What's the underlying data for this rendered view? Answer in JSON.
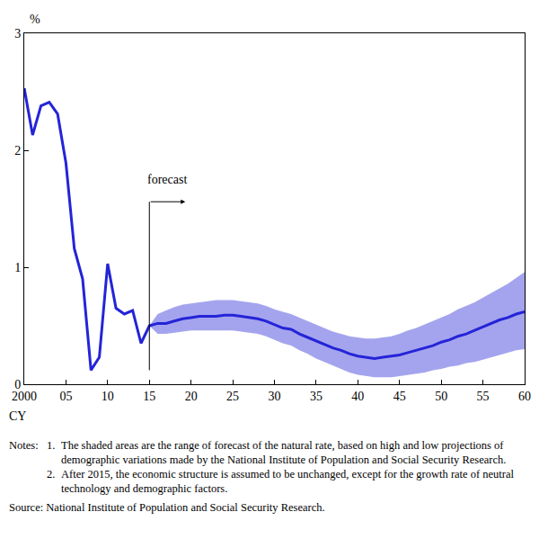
{
  "chart_data": {
    "type": "line",
    "x": [
      2000,
      2001,
      2002,
      2003,
      2004,
      2005,
      2006,
      2007,
      2008,
      2009,
      2010,
      2011,
      2012,
      2013,
      2014,
      2015,
      2016,
      2017,
      2018,
      2019,
      2020,
      2021,
      2022,
      2023,
      2024,
      2025,
      2026,
      2027,
      2028,
      2029,
      2030,
      2031,
      2032,
      2033,
      2034,
      2035,
      2036,
      2037,
      2038,
      2039,
      2040,
      2041,
      2042,
      2043,
      2044,
      2045,
      2046,
      2047,
      2048,
      2049,
      2050,
      2051,
      2052,
      2053,
      2054,
      2055,
      2056,
      2057,
      2058,
      2059,
      2060
    ],
    "values": [
      2.53,
      2.13,
      2.38,
      2.41,
      2.31,
      1.89,
      1.16,
      0.9,
      0.12,
      0.23,
      1.03,
      0.65,
      0.6,
      0.63,
      0.35,
      0.5,
      0.52,
      0.52,
      0.54,
      0.56,
      0.57,
      0.58,
      0.58,
      0.58,
      0.59,
      0.59,
      0.58,
      0.57,
      0.56,
      0.54,
      0.51,
      0.48,
      0.47,
      0.43,
      0.4,
      0.37,
      0.34,
      0.31,
      0.29,
      0.26,
      0.24,
      0.23,
      0.22,
      0.23,
      0.24,
      0.25,
      0.27,
      0.29,
      0.31,
      0.33,
      0.36,
      0.38,
      0.41,
      0.43,
      0.46,
      0.49,
      0.52,
      0.55,
      0.57,
      0.6,
      0.62
    ],
    "color": "#2424d8",
    "range": {
      "color": "#a4a4ee",
      "upper": [
        null,
        null,
        null,
        null,
        null,
        null,
        null,
        null,
        null,
        null,
        null,
        null,
        null,
        null,
        null,
        0.5,
        0.6,
        0.63,
        0.66,
        0.68,
        0.69,
        0.7,
        0.71,
        0.72,
        0.72,
        0.72,
        0.71,
        0.7,
        0.69,
        0.67,
        0.64,
        0.62,
        0.6,
        0.57,
        0.54,
        0.51,
        0.48,
        0.45,
        0.43,
        0.41,
        0.4,
        0.39,
        0.39,
        0.4,
        0.41,
        0.43,
        0.46,
        0.48,
        0.51,
        0.54,
        0.57,
        0.6,
        0.64,
        0.67,
        0.7,
        0.74,
        0.78,
        0.82,
        0.86,
        0.91,
        0.96
      ],
      "lower": [
        null,
        null,
        null,
        null,
        null,
        null,
        null,
        null,
        null,
        null,
        null,
        null,
        null,
        null,
        null,
        0.5,
        0.43,
        0.43,
        0.44,
        0.45,
        0.46,
        0.46,
        0.46,
        0.46,
        0.46,
        0.46,
        0.45,
        0.44,
        0.43,
        0.41,
        0.38,
        0.35,
        0.33,
        0.29,
        0.26,
        0.22,
        0.19,
        0.16,
        0.13,
        0.1,
        0.08,
        0.07,
        0.06,
        0.06,
        0.06,
        0.07,
        0.08,
        0.09,
        0.1,
        0.12,
        0.13,
        0.15,
        0.16,
        0.18,
        0.19,
        0.21,
        0.23,
        0.25,
        0.27,
        0.29,
        0.3
      ]
    },
    "xlim": [
      2000,
      2060
    ],
    "xticks": [
      2000,
      {
        "value": 2005,
        "label": "05"
      },
      {
        "value": 2010,
        "label": "10"
      },
      {
        "value": 2015,
        "label": "15"
      },
      {
        "value": 2020,
        "label": "20"
      },
      {
        "value": 2025,
        "label": "25"
      },
      {
        "value": 2030,
        "label": "30"
      },
      {
        "value": 2035,
        "label": "35"
      },
      {
        "value": 2040,
        "label": "40"
      },
      {
        "value": 2045,
        "label": "45"
      },
      {
        "value": 2050,
        "label": "50"
      },
      {
        "value": 2055,
        "label": "55"
      },
      {
        "value": 2060,
        "label": "60"
      }
    ],
    "ylim": [
      0,
      3
    ],
    "yticks": [
      0,
      1,
      2,
      3
    ],
    "x_label": "CY",
    "y_label": "%",
    "grid": false,
    "forecast_marker": {
      "text": "forecast",
      "x": 2015
    },
    "notes_label": "Notes:",
    "notes": [
      {
        "label": "1.",
        "text": "The shaded areas are the range of forecast of the natural rate, based on high and low projections of demographic variations made by the National Institute of Population and Social Security Research."
      },
      {
        "label": "2.",
        "text": "After 2015,  the economic structure is assumed to be unchanged, except for the growth rate of neutral technology and demographic factors."
      }
    ],
    "source": "Source: National Institute of Population and Social Security Research."
  }
}
